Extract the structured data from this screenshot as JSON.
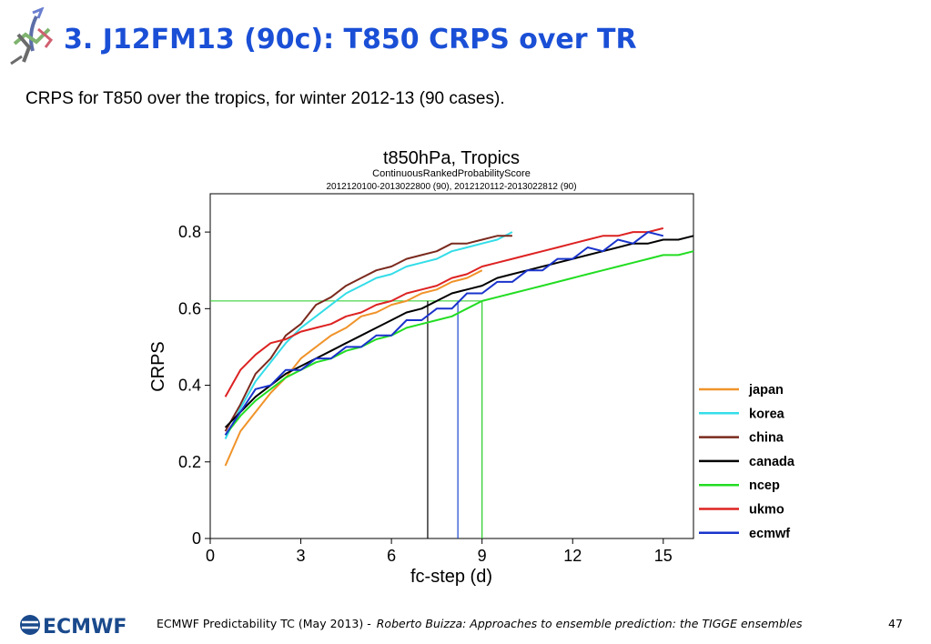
{
  "slide": {
    "title": "3. J12FM13 (90c): T850 CRPS over TR",
    "subtitle": "CRPS for T850 over the tropics, for winter 2012-13 (90 cases)."
  },
  "footer": {
    "logo_text": "ECMWF",
    "text": "ECMWF Predictability TC (May 2013) -",
    "author": "Roberto Buizza: Approaches to ensemble prediction: the TIGGE ensembles",
    "page": "47"
  },
  "chart_data": {
    "type": "line",
    "title": "t850hPa,  Tropics",
    "subtitle": "ContinuousRankedProbabilityScore",
    "subtitle2": "2012120100-2013022800 (90), 2012120112-2013022812 (90)",
    "xlabel": "fc-step (d)",
    "ylabel": "CRPS",
    "xlim": [
      0,
      16
    ],
    "ylim": [
      0,
      0.9
    ],
    "xticks": [
      "0",
      "3",
      "6",
      "9",
      "12",
      "15"
    ],
    "yticks": [
      "0",
      "0.2",
      "0.4",
      "0.6",
      "0.8"
    ],
    "legend_position": "right",
    "reference_lines": {
      "horizontal": {
        "y": 0.62,
        "color": "#22cc22"
      },
      "vertical": [
        {
          "x": 7.2,
          "color": "#000000"
        },
        {
          "x": 8.2,
          "color": "#1a44cc"
        },
        {
          "x": 9.0,
          "color": "#22cc22"
        }
      ]
    },
    "series": [
      {
        "name": "japan",
        "color": "#f0932a",
        "x": [
          0.5,
          1,
          1.5,
          2,
          2.5,
          3,
          3.5,
          4,
          4.5,
          5,
          5.5,
          6,
          6.5,
          7,
          7.5,
          8,
          8.5,
          9
        ],
        "y": [
          0.19,
          0.28,
          0.33,
          0.38,
          0.42,
          0.47,
          0.5,
          0.53,
          0.55,
          0.58,
          0.59,
          0.61,
          0.62,
          0.64,
          0.65,
          0.67,
          0.68,
          0.7
        ]
      },
      {
        "name": "korea",
        "color": "#33dde8",
        "x": [
          0.5,
          1,
          1.5,
          2,
          2.5,
          3,
          3.5,
          4,
          4.5,
          5,
          5.5,
          6,
          6.5,
          7,
          7.5,
          8,
          8.5,
          9,
          9.5,
          10
        ],
        "y": [
          0.26,
          0.34,
          0.41,
          0.46,
          0.51,
          0.55,
          0.58,
          0.61,
          0.64,
          0.66,
          0.68,
          0.69,
          0.71,
          0.72,
          0.73,
          0.75,
          0.76,
          0.77,
          0.78,
          0.8
        ]
      },
      {
        "name": "china",
        "color": "#7a2a1e",
        "x": [
          0.5,
          1,
          1.5,
          2,
          2.5,
          3,
          3.5,
          4,
          4.5,
          5,
          5.5,
          6,
          6.5,
          7,
          7.5,
          8,
          8.5,
          9,
          9.5,
          10
        ],
        "y": [
          0.28,
          0.35,
          0.43,
          0.47,
          0.53,
          0.56,
          0.61,
          0.63,
          0.66,
          0.68,
          0.7,
          0.71,
          0.73,
          0.74,
          0.75,
          0.77,
          0.77,
          0.78,
          0.79,
          0.79
        ]
      },
      {
        "name": "canada",
        "color": "#000000",
        "x": [
          0.5,
          1,
          1.5,
          2,
          2.5,
          3,
          3.5,
          4,
          4.5,
          5,
          5.5,
          6,
          6.5,
          7,
          7.5,
          8,
          8.5,
          9,
          9.5,
          10,
          10.5,
          11,
          11.5,
          12,
          12.5,
          13,
          13.5,
          14,
          14.5,
          15,
          15.5,
          16
        ],
        "y": [
          0.29,
          0.33,
          0.37,
          0.4,
          0.43,
          0.45,
          0.47,
          0.49,
          0.51,
          0.53,
          0.55,
          0.57,
          0.59,
          0.6,
          0.62,
          0.64,
          0.65,
          0.66,
          0.68,
          0.69,
          0.7,
          0.71,
          0.72,
          0.73,
          0.74,
          0.75,
          0.76,
          0.77,
          0.77,
          0.78,
          0.78,
          0.79
        ]
      },
      {
        "name": "ncep",
        "color": "#22dd22",
        "x": [
          0.5,
          1,
          1.5,
          2,
          2.5,
          3,
          3.5,
          4,
          4.5,
          5,
          5.5,
          6,
          6.5,
          7,
          7.5,
          8,
          8.5,
          9,
          9.5,
          10,
          10.5,
          11,
          11.5,
          12,
          12.5,
          13,
          13.5,
          14,
          14.5,
          15,
          15.5,
          16
        ],
        "y": [
          0.27,
          0.32,
          0.36,
          0.39,
          0.42,
          0.44,
          0.46,
          0.47,
          0.49,
          0.5,
          0.52,
          0.53,
          0.55,
          0.56,
          0.57,
          0.58,
          0.6,
          0.62,
          0.63,
          0.64,
          0.65,
          0.66,
          0.67,
          0.68,
          0.69,
          0.7,
          0.71,
          0.72,
          0.73,
          0.74,
          0.74,
          0.75
        ]
      },
      {
        "name": "ukmo",
        "color": "#dd2222",
        "x": [
          0.5,
          1,
          1.5,
          2,
          2.5,
          3,
          3.5,
          4,
          4.5,
          5,
          5.5,
          6,
          6.5,
          7,
          7.5,
          8,
          8.5,
          9,
          9.5,
          10,
          10.5,
          11,
          11.5,
          12,
          12.5,
          13,
          13.5,
          14,
          14.5,
          15
        ],
        "y": [
          0.37,
          0.44,
          0.48,
          0.51,
          0.52,
          0.54,
          0.55,
          0.56,
          0.58,
          0.59,
          0.61,
          0.62,
          0.64,
          0.65,
          0.66,
          0.68,
          0.69,
          0.71,
          0.72,
          0.73,
          0.74,
          0.75,
          0.76,
          0.77,
          0.78,
          0.79,
          0.79,
          0.8,
          0.8,
          0.81
        ]
      },
      {
        "name": "ecmwf",
        "color": "#1a33cc",
        "x": [
          0.5,
          1,
          1.5,
          2,
          2.5,
          3,
          3.5,
          4,
          4.5,
          5,
          5.5,
          6,
          6.5,
          7,
          7.5,
          8,
          8.5,
          9,
          9.5,
          10,
          10.5,
          11,
          11.5,
          12,
          12.5,
          13,
          13.5,
          14,
          14.5,
          15
        ],
        "y": [
          0.27,
          0.33,
          0.39,
          0.4,
          0.44,
          0.44,
          0.47,
          0.47,
          0.5,
          0.5,
          0.53,
          0.53,
          0.57,
          0.57,
          0.6,
          0.6,
          0.64,
          0.64,
          0.67,
          0.67,
          0.7,
          0.7,
          0.73,
          0.73,
          0.76,
          0.75,
          0.78,
          0.77,
          0.8,
          0.79
        ]
      }
    ]
  }
}
